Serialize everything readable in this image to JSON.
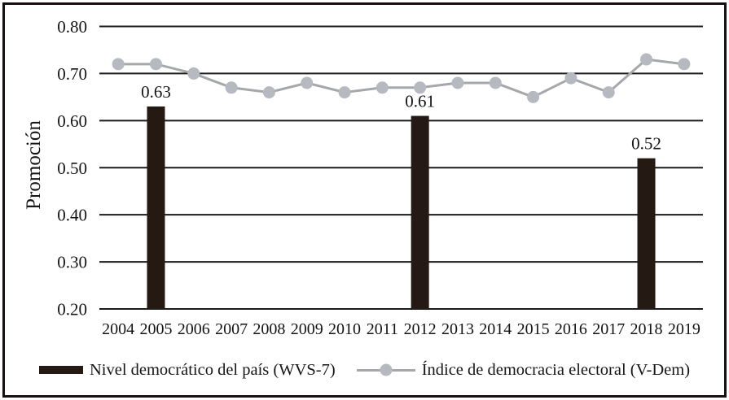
{
  "figure": {
    "border_color": "#190f11",
    "background": "#ffffff"
  },
  "chart_data": {
    "type": "combo-bar-line",
    "title": "",
    "ylabel": "Promoción",
    "xlabel": "",
    "categories": [
      "2004",
      "2005",
      "2006",
      "2007",
      "2008",
      "2009",
      "2010",
      "2011",
      "2012",
      "2013",
      "2014",
      "2015",
      "2016",
      "2017",
      "2018",
      "2019"
    ],
    "series": [
      {
        "name": "Nivel democrático del país (WVS-7)",
        "type": "bar",
        "color": "#241a13",
        "data_labels": true,
        "values": [
          null,
          0.63,
          null,
          null,
          null,
          null,
          null,
          null,
          0.61,
          null,
          null,
          null,
          null,
          null,
          0.52,
          null
        ]
      },
      {
        "name": "Índice de democracia electoral (V-Dem)",
        "type": "line",
        "line_color": "#a5a7aa",
        "marker_color": "#b6b9bf",
        "values": [
          0.72,
          0.72,
          0.7,
          0.67,
          0.66,
          0.68,
          0.66,
          0.67,
          0.67,
          0.68,
          0.68,
          0.65,
          0.69,
          0.66,
          0.73,
          0.72
        ]
      }
    ],
    "ylim": [
      0.2,
      0.8
    ],
    "ytick_step": 0.1,
    "ytick_labels": [
      "0.20",
      "0.30",
      "0.40",
      "0.50",
      "0.60",
      "0.70",
      "0.80"
    ],
    "grid": true,
    "grid_color": "#1b1b1b",
    "legend_position": "bottom"
  }
}
